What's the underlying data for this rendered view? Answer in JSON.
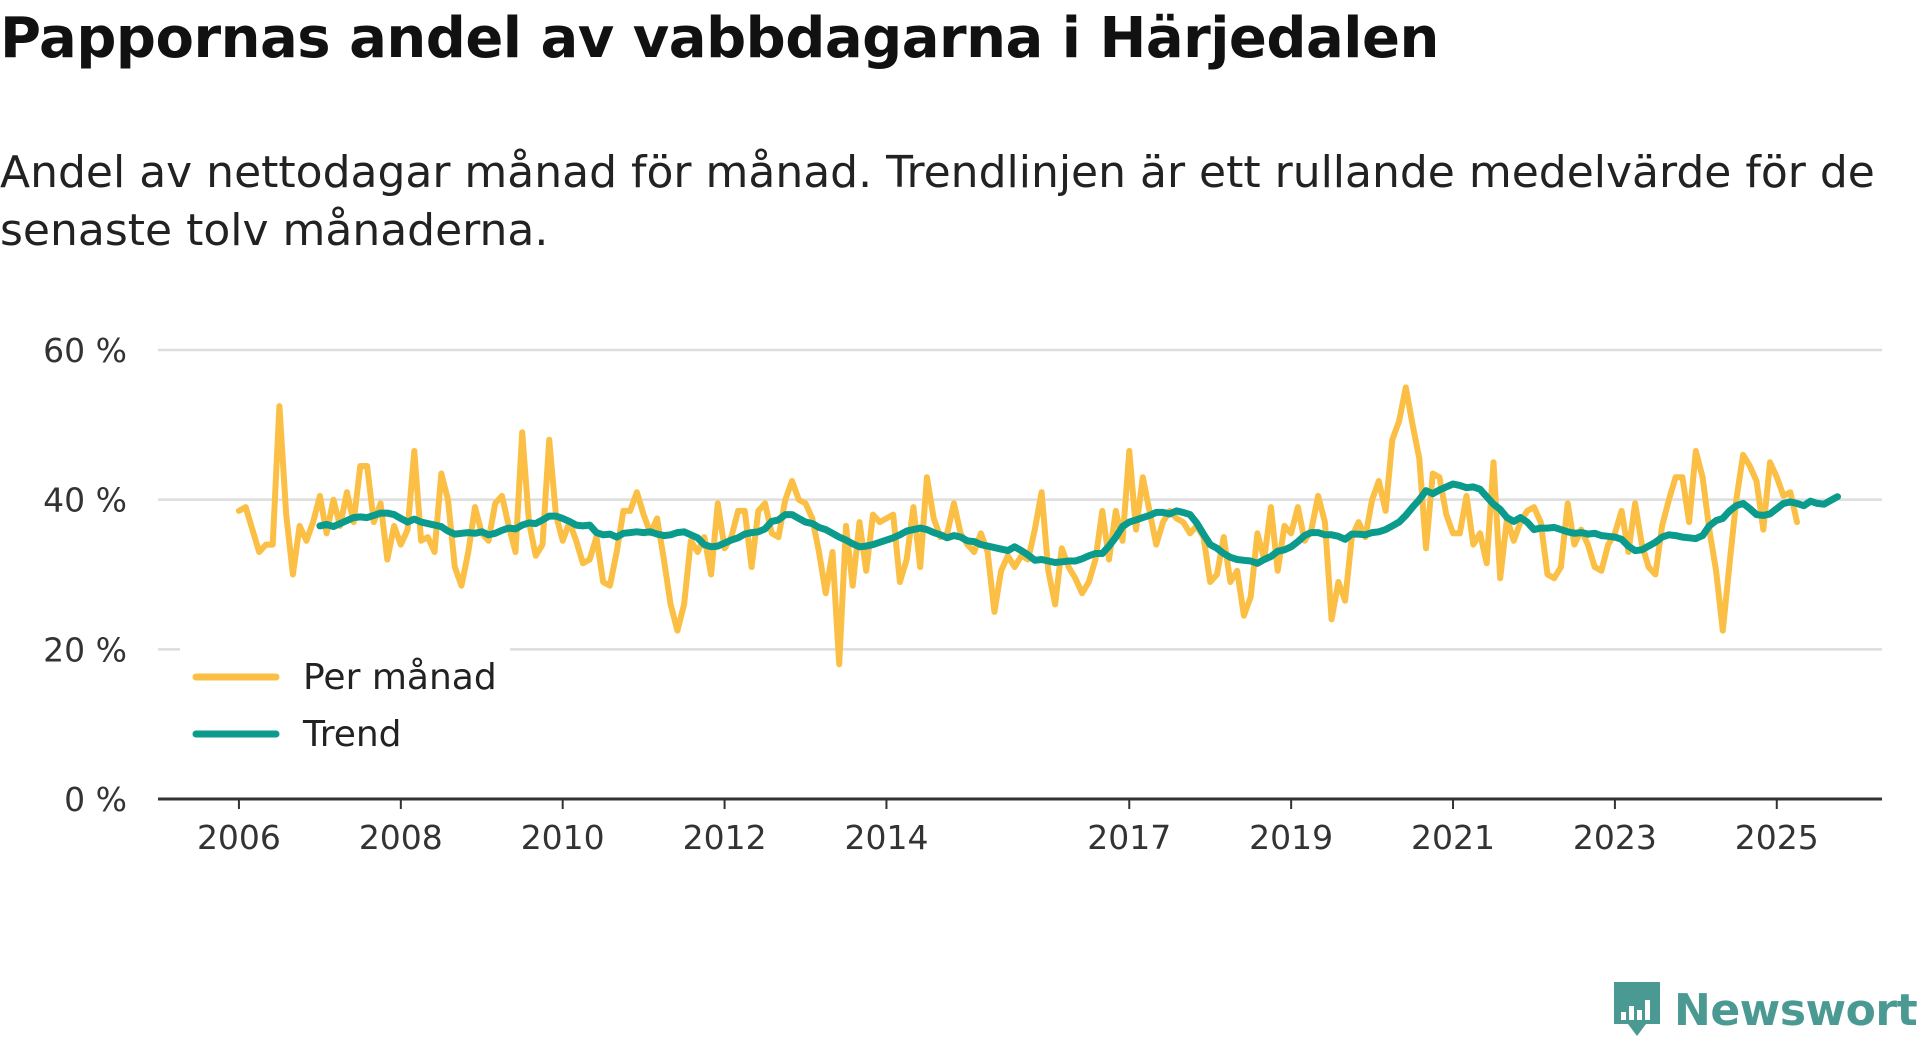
{
  "title": "Pappornas andel av vabbdagarna i Härjedalen",
  "subtitle": "Andel av nettodagar månad för månad. Trendlinjen är ett rullande medelvärde för de senaste tolv månaderna.",
  "brand": {
    "name": "Newsworthy",
    "color": "#4a9a93"
  },
  "colors": {
    "monthly": "#fbbf45",
    "trend": "#0b9b8c",
    "grid": "#dddddd",
    "axis": "#333333"
  },
  "chart_data": {
    "type": "line",
    "title": "Pappornas andel av vabbdagarna i Härjedalen",
    "xlabel": "",
    "ylabel": "",
    "y_ticks": [
      0,
      20,
      40,
      60
    ],
    "y_tick_labels": [
      "0 %",
      "20 %",
      "40 %",
      "60 %"
    ],
    "ylim": [
      0,
      60
    ],
    "x_ticks": [
      2006,
      2008,
      2010,
      2012,
      2014,
      2017,
      2019,
      2021,
      2023,
      2025
    ],
    "x_tick_labels": [
      "2006",
      "2008",
      "2010",
      "2012",
      "2014",
      "2017",
      "2019",
      "2021",
      "2023",
      "2025"
    ],
    "xlim": [
      2005.0,
      2026.3
    ],
    "legend": {
      "position": "bottom-left",
      "entries": [
        "Per månad",
        "Trend"
      ]
    },
    "series": [
      {
        "name": "Per månad",
        "start_year": 2006,
        "start_month": 1,
        "values": [
          38.5,
          39.0,
          36.0,
          33.0,
          34.0,
          34.0,
          52.5,
          38.0,
          30.0,
          36.5,
          34.5,
          37.0,
          40.5,
          35.5,
          40.0,
          36.5,
          41.0,
          37.0,
          44.5,
          44.5,
          37.0,
          39.5,
          32.0,
          36.5,
          34.0,
          36.0,
          46.5,
          34.5,
          35.0,
          33.0,
          43.5,
          40.0,
          31.0,
          28.5,
          33.0,
          39.0,
          35.5,
          34.5,
          39.5,
          40.5,
          36.5,
          33.0,
          49.0,
          37.0,
          32.5,
          34.0,
          48.0,
          38.0,
          34.5,
          37.0,
          34.5,
          31.5,
          32.0,
          35.0,
          29.0,
          28.5,
          33.0,
          38.5,
          38.5,
          41.0,
          38.0,
          35.5,
          37.5,
          32.0,
          26.0,
          22.5,
          26.0,
          34.5,
          33.0,
          35.0,
          30.0,
          39.5,
          33.5,
          35.0,
          38.5,
          38.5,
          31.0,
          38.5,
          39.5,
          35.5,
          35.0,
          40.0,
          42.5,
          40.0,
          39.5,
          37.5,
          33.0,
          27.5,
          33.0,
          18.0,
          36.5,
          28.5,
          37.0,
          30.5,
          38.0,
          37.0,
          37.5,
          38.0,
          29.0,
          32.0,
          39.0,
          31.0,
          43.0,
          37.5,
          35.0,
          35.5,
          39.5,
          35.5,
          34.0,
          33.0,
          35.5,
          33.0,
          25.0,
          30.5,
          32.5,
          31.0,
          32.5,
          32.0,
          36.0,
          41.0,
          30.5,
          26.0,
          33.5,
          31.0,
          29.5,
          27.5,
          29.0,
          32.0,
          38.5,
          32.0,
          38.5,
          34.5,
          46.5,
          36.0,
          43.0,
          38.5,
          34.0,
          37.0,
          38.5,
          37.5,
          37.0,
          35.5,
          36.5,
          35.0,
          29.0,
          30.0,
          35.0,
          29.0,
          30.5,
          24.5,
          27.0,
          35.5,
          32.0,
          39.0,
          30.5,
          36.5,
          35.5,
          39.0,
          34.5,
          36.0,
          40.5,
          37.0,
          24.0,
          29.0,
          26.5,
          35.0,
          37.0,
          35.0,
          40.0,
          42.5,
          38.5,
          48.0,
          50.5,
          55.0,
          50.0,
          45.5,
          33.5,
          43.5,
          43.0,
          38.0,
          35.5,
          35.5,
          40.5,
          34.0,
          35.5,
          31.5,
          45.0,
          29.5,
          37.5,
          34.5,
          37.0,
          38.5,
          39.0,
          37.0,
          30.0,
          29.5,
          31.0,
          39.5,
          34.0,
          36.0,
          34.0,
          31.0,
          30.5,
          34.0,
          35.5,
          38.5,
          33.0,
          39.5,
          34.0,
          31.0,
          30.0,
          36.5,
          40.0,
          43.0,
          43.0,
          37.0,
          46.5,
          43.0,
          36.0,
          30.5,
          22.5,
          31.5,
          40.0,
          46.0,
          44.5,
          42.5,
          36.0,
          45.0,
          43.0,
          40.5,
          41.0,
          37.0
        ]
      },
      {
        "name": "Trend",
        "start_year": 2007,
        "start_month": 1,
        "values": [
          36.5,
          36.7,
          36.4,
          36.8,
          37.2,
          37.6,
          37.7,
          37.6,
          37.9,
          38.2,
          38.2,
          38.0,
          37.5,
          37.0,
          37.4,
          37.0,
          36.8,
          36.6,
          36.4,
          35.8,
          35.4,
          35.5,
          35.6,
          35.5,
          35.7,
          35.3,
          35.5,
          35.9,
          36.2,
          36.1,
          36.6,
          36.9,
          36.8,
          37.3,
          37.8,
          37.8,
          37.5,
          37.1,
          36.6,
          36.5,
          36.6,
          35.6,
          35.3,
          35.4,
          35.0,
          35.5,
          35.6,
          35.7,
          35.6,
          35.7,
          35.4,
          35.2,
          35.3,
          35.6,
          35.7,
          35.3,
          34.9,
          34.0,
          33.7,
          33.8,
          34.2,
          34.6,
          34.9,
          35.4,
          35.6,
          35.7,
          36.1,
          37.1,
          37.3,
          38.0,
          38.0,
          37.5,
          37.0,
          36.8,
          36.3,
          36.0,
          35.5,
          35.0,
          34.6,
          34.1,
          33.7,
          33.8,
          34.0,
          34.3,
          34.6,
          34.9,
          35.3,
          35.8,
          36.0,
          36.2,
          36.0,
          35.6,
          35.3,
          34.9,
          35.2,
          35.0,
          34.5,
          34.4,
          34.0,
          33.8,
          33.6,
          33.4,
          33.2,
          33.7,
          33.2,
          32.6,
          31.9,
          32.0,
          31.8,
          31.6,
          31.7,
          31.8,
          31.8,
          32.1,
          32.5,
          32.8,
          32.8,
          33.8,
          35.0,
          36.4,
          37.0,
          37.3,
          37.6,
          37.9,
          38.3,
          38.3,
          38.1,
          38.5,
          38.3,
          38.0,
          36.9,
          35.4,
          34.0,
          33.5,
          32.8,
          32.3,
          32.0,
          31.9,
          31.8,
          31.5,
          32.0,
          32.4,
          33.1,
          33.3,
          33.7,
          34.4,
          35.2,
          35.6,
          35.6,
          35.3,
          35.3,
          35.1,
          34.7,
          35.4,
          35.4,
          35.3,
          35.6,
          35.7,
          36.0,
          36.5,
          37.0,
          37.9,
          39.0,
          40.0,
          41.2,
          40.8,
          41.3,
          41.7,
          42.1,
          41.9,
          41.6,
          41.7,
          41.4,
          40.4,
          39.4,
          38.7,
          37.6,
          37.1,
          37.6,
          37.0,
          36.0,
          36.2,
          36.2,
          36.3,
          36.0,
          35.7,
          35.5,
          35.6,
          35.4,
          35.5,
          35.2,
          35.1,
          35.0,
          34.7,
          33.8,
          33.2,
          33.3,
          33.8,
          34.3,
          35.0,
          35.3,
          35.2,
          35.0,
          34.9,
          34.8,
          35.2,
          36.5,
          37.2,
          37.5,
          38.5,
          39.2,
          39.5,
          38.8,
          38.0,
          37.9,
          38.1,
          38.8,
          39.5,
          39.7,
          39.5,
          39.2,
          39.8,
          39.5,
          39.4,
          39.9,
          40.4
        ]
      }
    ]
  }
}
